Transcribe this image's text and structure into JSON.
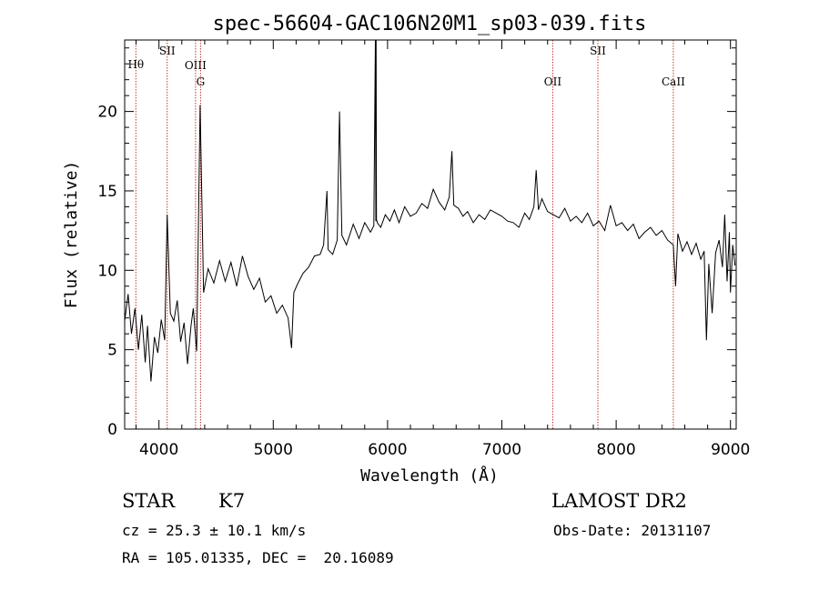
{
  "chart_data": {
    "type": "line",
    "title": "spec-56604-GAC106N20M1_sp03-039.fits",
    "xlabel": "Wavelength (Å)",
    "ylabel": "Flux (relative)",
    "xlim": [
      3700,
      9050
    ],
    "ylim": [
      0,
      24.5
    ],
    "xticks": [
      4000,
      5000,
      6000,
      7000,
      8000,
      9000
    ],
    "yticks": [
      0,
      5,
      10,
      15,
      20
    ],
    "grid": false,
    "lines": [
      {
        "name": "Hθ",
        "x": 3798
      },
      {
        "name": "SII",
        "x": 4072
      },
      {
        "name": "OIII",
        "x": 4320
      },
      {
        "name": "G",
        "x": 4364
      },
      {
        "name": "OII",
        "x": 7445
      },
      {
        "name": "SII",
        "x": 7840
      },
      {
        "name": "CaII",
        "x": 8500
      }
    ],
    "series": [
      {
        "x": [
          3700,
          3730,
          3760,
          3790,
          3820,
          3850,
          3880,
          3900,
          3930,
          3960,
          3990,
          4020,
          4050,
          4072,
          4100,
          4130,
          4160,
          4190,
          4220,
          4250,
          4280,
          4300,
          4330,
          4360,
          4390,
          4430,
          4480,
          4530,
          4580,
          4630,
          4680,
          4730,
          4780,
          4830,
          4880,
          4930,
          4980,
          5030,
          5080,
          5130,
          5160,
          5180,
          5210,
          5260,
          5310,
          5360,
          5410,
          5440,
          5470,
          5480,
          5520,
          5560,
          5580,
          5600,
          5640,
          5700,
          5750,
          5800,
          5850,
          5880,
          5893,
          5897,
          5900,
          5903,
          5910,
          5940,
          5980,
          6020,
          6060,
          6100,
          6150,
          6200,
          6250,
          6300,
          6350,
          6400,
          6450,
          6500,
          6540,
          6563,
          6580,
          6620,
          6660,
          6700,
          6750,
          6800,
          6850,
          6900,
          6950,
          7000,
          7050,
          7100,
          7150,
          7200,
          7240,
          7280,
          7300,
          7320,
          7350,
          7400,
          7450,
          7500,
          7550,
          7600,
          7650,
          7700,
          7750,
          7800,
          7850,
          7900,
          7950,
          8000,
          8050,
          8100,
          8150,
          8200,
          8250,
          8300,
          8350,
          8400,
          8450,
          8500,
          8520,
          8540,
          8580,
          8620,
          8660,
          8700,
          8740,
          8770,
          8790,
          8810,
          8840,
          8870,
          8900,
          8930,
          8950,
          8970,
          8990,
          9000,
          9020,
          9040
        ],
        "y": [
          6.8,
          8.5,
          6.0,
          7.6,
          5.0,
          7.2,
          4.2,
          6.5,
          3.0,
          5.8,
          4.8,
          6.9,
          5.6,
          13.5,
          7.3,
          6.8,
          8.1,
          5.5,
          6.7,
          4.1,
          6.5,
          7.6,
          4.9,
          20.4,
          8.6,
          10.1,
          9.2,
          10.6,
          9.3,
          10.5,
          9.0,
          10.9,
          9.6,
          8.8,
          9.5,
          8.0,
          8.4,
          7.3,
          7.8,
          7.0,
          5.1,
          8.6,
          9.1,
          9.8,
          10.2,
          10.9,
          11.0,
          11.6,
          15.0,
          11.3,
          11.0,
          11.9,
          20.0,
          12.2,
          11.6,
          12.9,
          12.0,
          13.0,
          12.4,
          12.8,
          24.5,
          13.1,
          24.5,
          13.2,
          13.0,
          12.7,
          13.5,
          13.1,
          13.8,
          13.0,
          14.0,
          13.4,
          13.6,
          14.2,
          13.9,
          15.1,
          14.3,
          13.8,
          14.6,
          17.5,
          14.1,
          13.9,
          13.4,
          13.7,
          13.0,
          13.5,
          13.2,
          13.8,
          13.6,
          13.4,
          13.1,
          13.0,
          12.7,
          13.6,
          13.2,
          14.0,
          16.3,
          13.8,
          14.5,
          13.7,
          13.5,
          13.3,
          13.9,
          13.1,
          13.4,
          13.0,
          13.6,
          12.8,
          13.1,
          12.5,
          14.1,
          12.8,
          13.0,
          12.5,
          12.9,
          12.0,
          12.4,
          12.7,
          12.2,
          12.5,
          11.9,
          11.6,
          9.0,
          12.3,
          11.2,
          11.8,
          11.0,
          11.7,
          10.7,
          11.2,
          5.6,
          10.4,
          7.3,
          11.1,
          11.9,
          10.2,
          13.5,
          9.3,
          12.4,
          8.6,
          11.6,
          10.3
        ]
      }
    ]
  },
  "footer": {
    "object_class": "STAR",
    "subclass": "K7",
    "survey": "LAMOST DR2",
    "cz": "cz = 25.3 ± 10.1 km/s",
    "obs_date": "Obs-Date: 20131107",
    "coords": "RA = 105.01335, DEC =  20.16089"
  },
  "colors": {
    "spectrum": "#000000",
    "line_marker": "#c0392b"
  }
}
